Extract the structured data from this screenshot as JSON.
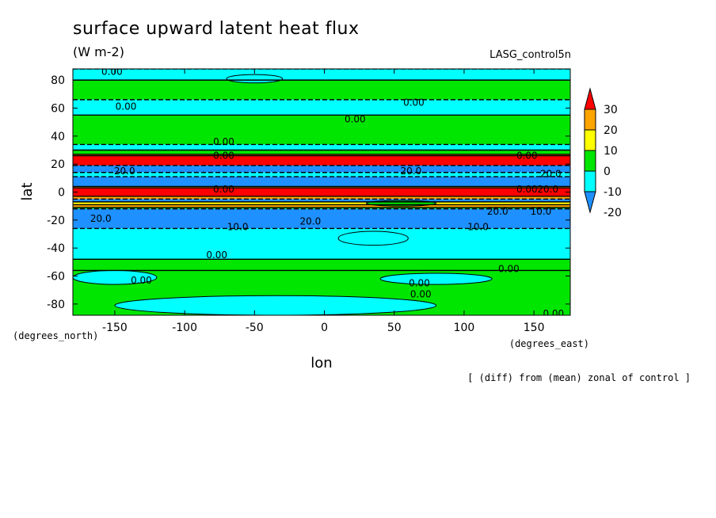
{
  "header": {
    "title": "surface upward latent heat flux",
    "units": "(W m-2)",
    "dataset": "LASG_control5n",
    "note": "[ (diff) from (mean) zonal of control ]"
  },
  "chart_data": {
    "type": "contour",
    "title": "surface upward latent heat flux",
    "subtitle": "(W m-2)",
    "xlabel": "lon",
    "ylabel": "lat",
    "xunit_label": "(degrees_east)",
    "yunit_label": "(degrees_north)",
    "xlim": [
      -180,
      176
    ],
    "ylim": [
      -88,
      88
    ],
    "xticks": [
      -150,
      -100,
      -50,
      0,
      50,
      100,
      150
    ],
    "yticks": [
      -80,
      -60,
      -40,
      -20,
      0,
      20,
      40,
      60,
      80
    ],
    "colorbar": {
      "levels": [
        30,
        20,
        10,
        0,
        -10,
        -20
      ],
      "label_text": [
        "30",
        "20",
        "10",
        "0",
        "-10",
        "-20"
      ],
      "fills": [
        "#ff0000",
        "#ffa500",
        "#ffff00",
        "#00e600",
        "#00ffff",
        "#1e90ff"
      ]
    },
    "zonal_bands": [
      {
        "lat": [
          80,
          88
        ],
        "level": "-10"
      },
      {
        "lat": [
          66,
          80
        ],
        "level": "0"
      },
      {
        "lat": [
          55,
          66
        ],
        "level": "-10"
      },
      {
        "lat": [
          34,
          55
        ],
        "level": "0"
      },
      {
        "lat": [
          30,
          34
        ],
        "level": "-10"
      },
      {
        "lat": [
          27,
          30
        ],
        "level": "0"
      },
      {
        "lat": [
          26,
          27
        ],
        "level": "20"
      },
      {
        "lat": [
          19,
          26
        ],
        "level": "30"
      },
      {
        "lat": [
          14,
          19
        ],
        "level": "-20"
      },
      {
        "lat": [
          11,
          14
        ],
        "level": "-10"
      },
      {
        "lat": [
          4,
          11
        ],
        "level": "-20"
      },
      {
        "lat": [
          3,
          4
        ],
        "level": "20"
      },
      {
        "lat": [
          -3,
          3
        ],
        "level": "30"
      },
      {
        "lat": [
          -5,
          -3
        ],
        "level": "20"
      },
      {
        "lat": [
          -7,
          -5
        ],
        "level": "-20"
      },
      {
        "lat": [
          -9,
          -7
        ],
        "level": "10"
      },
      {
        "lat": [
          -11,
          -9
        ],
        "level": "20"
      },
      {
        "lat": [
          -12,
          -11
        ],
        "level": "0"
      },
      {
        "lat": [
          -26,
          -12
        ],
        "level": "-20"
      },
      {
        "lat": [
          -48,
          -26
        ],
        "level": "-10"
      },
      {
        "lat": [
          -56,
          -48
        ],
        "level": "0"
      },
      {
        "lat": [
          -88,
          -56
        ],
        "level": "0"
      }
    ],
    "patches": [
      {
        "lon": [
          -150,
          80
        ],
        "lat": [
          -88,
          -74
        ],
        "level": "-10"
      },
      {
        "lon": [
          -180,
          -120
        ],
        "lat": [
          -66,
          -56
        ],
        "level": "-10"
      },
      {
        "lon": [
          40,
          120
        ],
        "lat": [
          -66,
          -58
        ],
        "level": "-10"
      },
      {
        "lon": [
          10,
          60
        ],
        "lat": [
          -38,
          -28
        ],
        "level": "-10"
      },
      {
        "lon": [
          30,
          80
        ],
        "lat": [
          -10,
          -6
        ],
        "level": "0"
      },
      {
        "lon": [
          -70,
          -30
        ],
        "lat": [
          78,
          84
        ],
        "level": "-10"
      }
    ],
    "contour_labels": [
      {
        "text": "0.00",
        "lon": -152,
        "lat": 86
      },
      {
        "text": "0.00",
        "lon": -142,
        "lat": 61
      },
      {
        "text": "0.00",
        "lon": 64,
        "lat": 64
      },
      {
        "text": "0.00",
        "lon": 22,
        "lat": 52
      },
      {
        "text": "0.00",
        "lon": -72,
        "lat": 36
      },
      {
        "text": "0.00",
        "lon": -72,
        "lat": 26
      },
      {
        "text": "0.00",
        "lon": 145,
        "lat": 26
      },
      {
        "text": "20.0",
        "lon": -143,
        "lat": 15
      },
      {
        "text": "20.0",
        "lon": 62,
        "lat": 15
      },
      {
        "text": "20.0",
        "lon": 162,
        "lat": 13
      },
      {
        "text": "0.00",
        "lon": -72,
        "lat": 2
      },
      {
        "text": "0.00",
        "lon": 145,
        "lat": 2
      },
      {
        "text": "20.0",
        "lon": 160,
        "lat": 2
      },
      {
        "text": "20.0",
        "lon": 124,
        "lat": -14
      },
      {
        "text": "10.0",
        "lon": 155,
        "lat": -14
      },
      {
        "text": "20.0",
        "lon": -160,
        "lat": -19
      },
      {
        "text": "20.0",
        "lon": -10,
        "lat": -21
      },
      {
        "text": "10.0",
        "lon": -62,
        "lat": -25
      },
      {
        "text": "10.0",
        "lon": 110,
        "lat": -25
      },
      {
        "text": "0.00",
        "lon": -77,
        "lat": -45
      },
      {
        "text": "0.00",
        "lon": -131,
        "lat": -63
      },
      {
        "text": "0.00",
        "lon": 132,
        "lat": -55
      },
      {
        "text": "0.00",
        "lon": 68,
        "lat": -65
      },
      {
        "text": "0.00",
        "lon": 69,
        "lat": -73
      },
      {
        "text": "0.00",
        "lon": 164,
        "lat": -87
      }
    ]
  }
}
